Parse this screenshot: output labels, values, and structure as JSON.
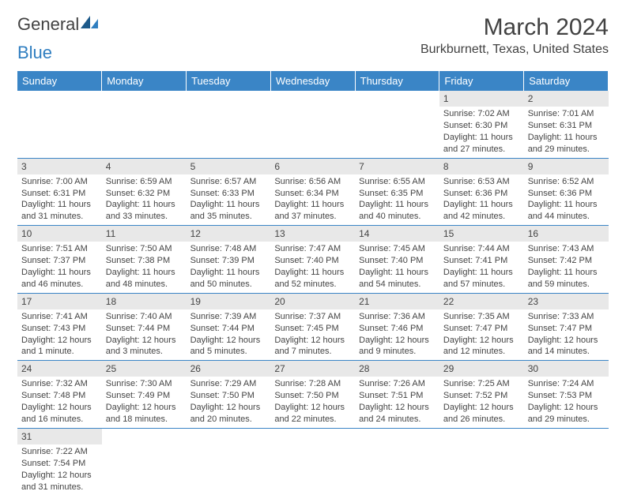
{
  "logo": {
    "text_general": "Genera",
    "text_l": "l",
    "text_blue": "Blue"
  },
  "title": "March 2024",
  "location": "Burkburnett, Texas, United States",
  "colors": {
    "header_bg": "#3a85c6",
    "header_text": "#ffffff",
    "daynum_bg": "#e8e8e8",
    "border": "#3a85c6",
    "logo_blue": "#2f7ec0",
    "body_text": "#444444"
  },
  "day_headers": [
    "Sunday",
    "Monday",
    "Tuesday",
    "Wednesday",
    "Thursday",
    "Friday",
    "Saturday"
  ],
  "weeks": [
    [
      null,
      null,
      null,
      null,
      null,
      {
        "n": "1",
        "sr": "Sunrise: 7:02 AM",
        "ss": "Sunset: 6:30 PM",
        "dl1": "Daylight: 11 hours",
        "dl2": "and 27 minutes."
      },
      {
        "n": "2",
        "sr": "Sunrise: 7:01 AM",
        "ss": "Sunset: 6:31 PM",
        "dl1": "Daylight: 11 hours",
        "dl2": "and 29 minutes."
      }
    ],
    [
      {
        "n": "3",
        "sr": "Sunrise: 7:00 AM",
        "ss": "Sunset: 6:31 PM",
        "dl1": "Daylight: 11 hours",
        "dl2": "and 31 minutes."
      },
      {
        "n": "4",
        "sr": "Sunrise: 6:59 AM",
        "ss": "Sunset: 6:32 PM",
        "dl1": "Daylight: 11 hours",
        "dl2": "and 33 minutes."
      },
      {
        "n": "5",
        "sr": "Sunrise: 6:57 AM",
        "ss": "Sunset: 6:33 PM",
        "dl1": "Daylight: 11 hours",
        "dl2": "and 35 minutes."
      },
      {
        "n": "6",
        "sr": "Sunrise: 6:56 AM",
        "ss": "Sunset: 6:34 PM",
        "dl1": "Daylight: 11 hours",
        "dl2": "and 37 minutes."
      },
      {
        "n": "7",
        "sr": "Sunrise: 6:55 AM",
        "ss": "Sunset: 6:35 PM",
        "dl1": "Daylight: 11 hours",
        "dl2": "and 40 minutes."
      },
      {
        "n": "8",
        "sr": "Sunrise: 6:53 AM",
        "ss": "Sunset: 6:36 PM",
        "dl1": "Daylight: 11 hours",
        "dl2": "and 42 minutes."
      },
      {
        "n": "9",
        "sr": "Sunrise: 6:52 AM",
        "ss": "Sunset: 6:36 PM",
        "dl1": "Daylight: 11 hours",
        "dl2": "and 44 minutes."
      }
    ],
    [
      {
        "n": "10",
        "sr": "Sunrise: 7:51 AM",
        "ss": "Sunset: 7:37 PM",
        "dl1": "Daylight: 11 hours",
        "dl2": "and 46 minutes."
      },
      {
        "n": "11",
        "sr": "Sunrise: 7:50 AM",
        "ss": "Sunset: 7:38 PM",
        "dl1": "Daylight: 11 hours",
        "dl2": "and 48 minutes."
      },
      {
        "n": "12",
        "sr": "Sunrise: 7:48 AM",
        "ss": "Sunset: 7:39 PM",
        "dl1": "Daylight: 11 hours",
        "dl2": "and 50 minutes."
      },
      {
        "n": "13",
        "sr": "Sunrise: 7:47 AM",
        "ss": "Sunset: 7:40 PM",
        "dl1": "Daylight: 11 hours",
        "dl2": "and 52 minutes."
      },
      {
        "n": "14",
        "sr": "Sunrise: 7:45 AM",
        "ss": "Sunset: 7:40 PM",
        "dl1": "Daylight: 11 hours",
        "dl2": "and 54 minutes."
      },
      {
        "n": "15",
        "sr": "Sunrise: 7:44 AM",
        "ss": "Sunset: 7:41 PM",
        "dl1": "Daylight: 11 hours",
        "dl2": "and 57 minutes."
      },
      {
        "n": "16",
        "sr": "Sunrise: 7:43 AM",
        "ss": "Sunset: 7:42 PM",
        "dl1": "Daylight: 11 hours",
        "dl2": "and 59 minutes."
      }
    ],
    [
      {
        "n": "17",
        "sr": "Sunrise: 7:41 AM",
        "ss": "Sunset: 7:43 PM",
        "dl1": "Daylight: 12 hours",
        "dl2": "and 1 minute."
      },
      {
        "n": "18",
        "sr": "Sunrise: 7:40 AM",
        "ss": "Sunset: 7:44 PM",
        "dl1": "Daylight: 12 hours",
        "dl2": "and 3 minutes."
      },
      {
        "n": "19",
        "sr": "Sunrise: 7:39 AM",
        "ss": "Sunset: 7:44 PM",
        "dl1": "Daylight: 12 hours",
        "dl2": "and 5 minutes."
      },
      {
        "n": "20",
        "sr": "Sunrise: 7:37 AM",
        "ss": "Sunset: 7:45 PM",
        "dl1": "Daylight: 12 hours",
        "dl2": "and 7 minutes."
      },
      {
        "n": "21",
        "sr": "Sunrise: 7:36 AM",
        "ss": "Sunset: 7:46 PM",
        "dl1": "Daylight: 12 hours",
        "dl2": "and 9 minutes."
      },
      {
        "n": "22",
        "sr": "Sunrise: 7:35 AM",
        "ss": "Sunset: 7:47 PM",
        "dl1": "Daylight: 12 hours",
        "dl2": "and 12 minutes."
      },
      {
        "n": "23",
        "sr": "Sunrise: 7:33 AM",
        "ss": "Sunset: 7:47 PM",
        "dl1": "Daylight: 12 hours",
        "dl2": "and 14 minutes."
      }
    ],
    [
      {
        "n": "24",
        "sr": "Sunrise: 7:32 AM",
        "ss": "Sunset: 7:48 PM",
        "dl1": "Daylight: 12 hours",
        "dl2": "and 16 minutes."
      },
      {
        "n": "25",
        "sr": "Sunrise: 7:30 AM",
        "ss": "Sunset: 7:49 PM",
        "dl1": "Daylight: 12 hours",
        "dl2": "and 18 minutes."
      },
      {
        "n": "26",
        "sr": "Sunrise: 7:29 AM",
        "ss": "Sunset: 7:50 PM",
        "dl1": "Daylight: 12 hours",
        "dl2": "and 20 minutes."
      },
      {
        "n": "27",
        "sr": "Sunrise: 7:28 AM",
        "ss": "Sunset: 7:50 PM",
        "dl1": "Daylight: 12 hours",
        "dl2": "and 22 minutes."
      },
      {
        "n": "28",
        "sr": "Sunrise: 7:26 AM",
        "ss": "Sunset: 7:51 PM",
        "dl1": "Daylight: 12 hours",
        "dl2": "and 24 minutes."
      },
      {
        "n": "29",
        "sr": "Sunrise: 7:25 AM",
        "ss": "Sunset: 7:52 PM",
        "dl1": "Daylight: 12 hours",
        "dl2": "and 26 minutes."
      },
      {
        "n": "30",
        "sr": "Sunrise: 7:24 AM",
        "ss": "Sunset: 7:53 PM",
        "dl1": "Daylight: 12 hours",
        "dl2": "and 29 minutes."
      }
    ],
    [
      {
        "n": "31",
        "sr": "Sunrise: 7:22 AM",
        "ss": "Sunset: 7:54 PM",
        "dl1": "Daylight: 12 hours",
        "dl2": "and 31 minutes."
      },
      null,
      null,
      null,
      null,
      null,
      null
    ]
  ]
}
